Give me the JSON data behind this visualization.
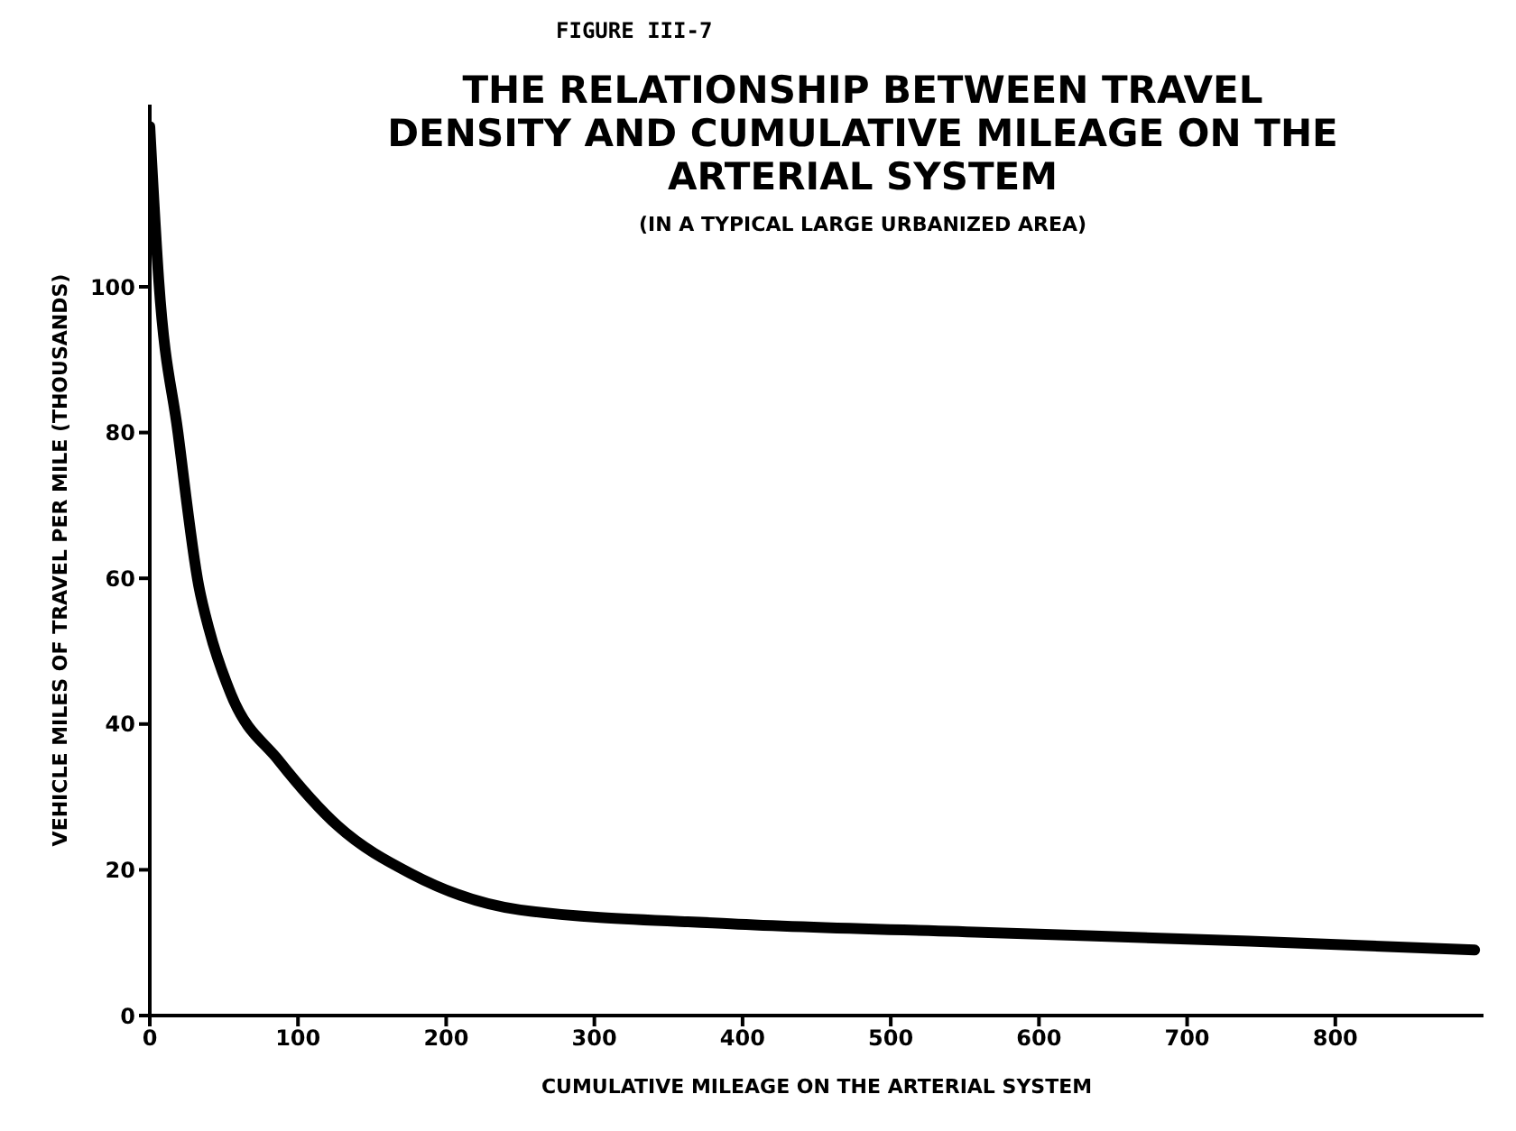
{
  "chart_data": {
    "type": "line",
    "title": "THE RELATIONSHIP BETWEEN TRAVEL DENSITY AND CUMULATIVE MILEAGE ON THE ARTERIAL SYSTEM",
    "subtitle": "(IN A TYPICAL LARGE URBANIZED AREA)",
    "annotations": [
      "FIGURE III-7"
    ],
    "xlabel": "CUMULATIVE MILEAGE ON THE ARTERIAL SYSTEM",
    "ylabel": "VEHICLE MILES OF TRAVEL PER MILE (THOUSANDS)",
    "series": [
      {
        "color": "#000000",
        "x": [
          0,
          6,
          19,
          33,
          40,
          55,
          87,
          127,
          176,
          250,
          392,
          566,
          742,
          894
        ],
        "values": [
          122,
          101,
          80,
          59,
          53,
          44,
          35,
          26,
          19.5,
          14.5,
          12.6,
          11.4,
          10.2,
          9
        ]
      }
    ],
    "xlim": [
      0,
      900
    ],
    "xticks": [
      0,
      100,
      200,
      300,
      400,
      500,
      600,
      700,
      800
    ],
    "ylim": [
      0,
      125
    ],
    "yticks": [
      0,
      20,
      40,
      60,
      80,
      100
    ],
    "grid": false,
    "legend": false,
    "marker": "none",
    "line_style": "solid"
  }
}
